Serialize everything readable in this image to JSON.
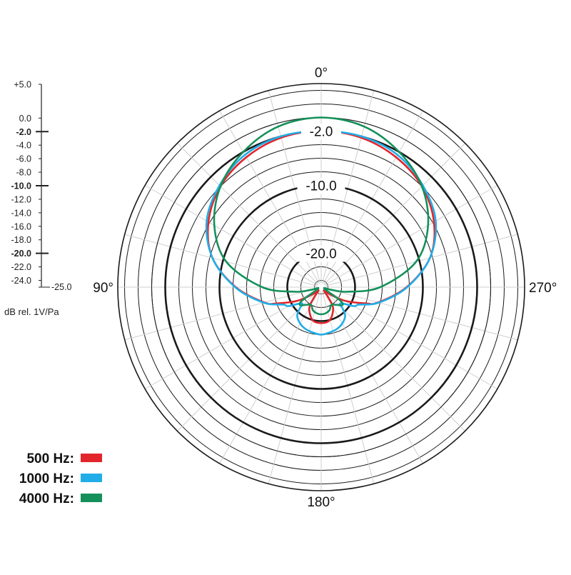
{
  "chart_data": {
    "type": "polar",
    "scale_labels": [
      "+5.0",
      "0.0",
      "-2.0",
      "-4.0",
      "-6.0",
      "-8.0",
      "-10.0",
      "-12.0",
      "-14.0",
      "-16.0",
      "-18.0",
      "-20.0",
      "-22.0",
      "-24.0",
      "-25.0"
    ],
    "scale_values": [
      5,
      0,
      -2,
      -4,
      -6,
      -8,
      -10,
      -12,
      -14,
      -16,
      -18,
      -20,
      -22,
      -24,
      -25
    ],
    "major_scale_values": [
      -2,
      -10,
      -20
    ],
    "unit_label": "dB rel. 1V/Pa",
    "angle_labels": [
      {
        "text": "0°",
        "angle": 0
      },
      {
        "text": "90°",
        "angle": 90
      },
      {
        "text": "180°",
        "angle": 180
      },
      {
        "text": "270°",
        "angle": 270
      }
    ],
    "reference_rings": [
      {
        "label": "-2.0",
        "value": -2
      },
      {
        "label": "-10.0",
        "value": -10
      },
      {
        "label": "-20.0",
        "value": -20
      }
    ],
    "r_range": [
      -25,
      5
    ],
    "grid": true,
    "legend_position": "bottom-left",
    "series": [
      {
        "name": "500 Hz:",
        "color": "#e2262c",
        "angles": [
          0,
          15,
          30,
          45,
          60,
          75,
          90,
          105,
          110,
          120,
          130,
          140,
          145,
          150,
          165,
          180
        ],
        "values": [
          -2.0,
          -2.2,
          -2.9,
          -4.0,
          -5.8,
          -8.4,
          -12.4,
          -16.3,
          -18.0,
          -21.0,
          -23.4,
          -24.4,
          -23.3,
          -21.5,
          -20.0,
          -19.7
        ]
      },
      {
        "name": "1000 Hz:",
        "color": "#21aee8",
        "angles": [
          0,
          15,
          30,
          45,
          60,
          75,
          90,
          105,
          115,
          120,
          130,
          135,
          140,
          150,
          160,
          170,
          180
        ],
        "values": [
          -2.0,
          -2.0,
          -2.5,
          -3.8,
          -5.5,
          -8.4,
          -12.3,
          -16.2,
          -18.9,
          -19.4,
          -21.3,
          -20.5,
          -19.5,
          -18.8,
          -18.4,
          -18.2,
          -18.0
        ]
      },
      {
        "name": "4000 Hz:",
        "color": "#14905a",
        "angles": [
          0,
          15,
          30,
          45,
          60,
          75,
          90,
          100,
          105,
          115,
          125,
          130,
          140,
          150,
          160,
          170,
          180
        ],
        "values": [
          0.0,
          -0.5,
          -2.0,
          -4.0,
          -6.8,
          -10.5,
          -16.3,
          -21.1,
          -23.5,
          -24.5,
          -21.6,
          -20.9,
          -21.6,
          -22.0,
          -21.4,
          -21.1,
          -21.0
        ]
      }
    ]
  }
}
